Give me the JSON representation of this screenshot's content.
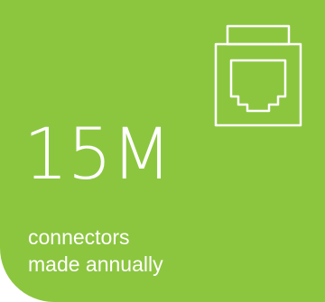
{
  "card": {
    "background_color": "#8cc63f",
    "text_color": "#ffffff",
    "icon": "ethernet-connector-icon",
    "stat_value": "15M",
    "caption_lines": [
      "connectors",
      "made annually"
    ]
  }
}
